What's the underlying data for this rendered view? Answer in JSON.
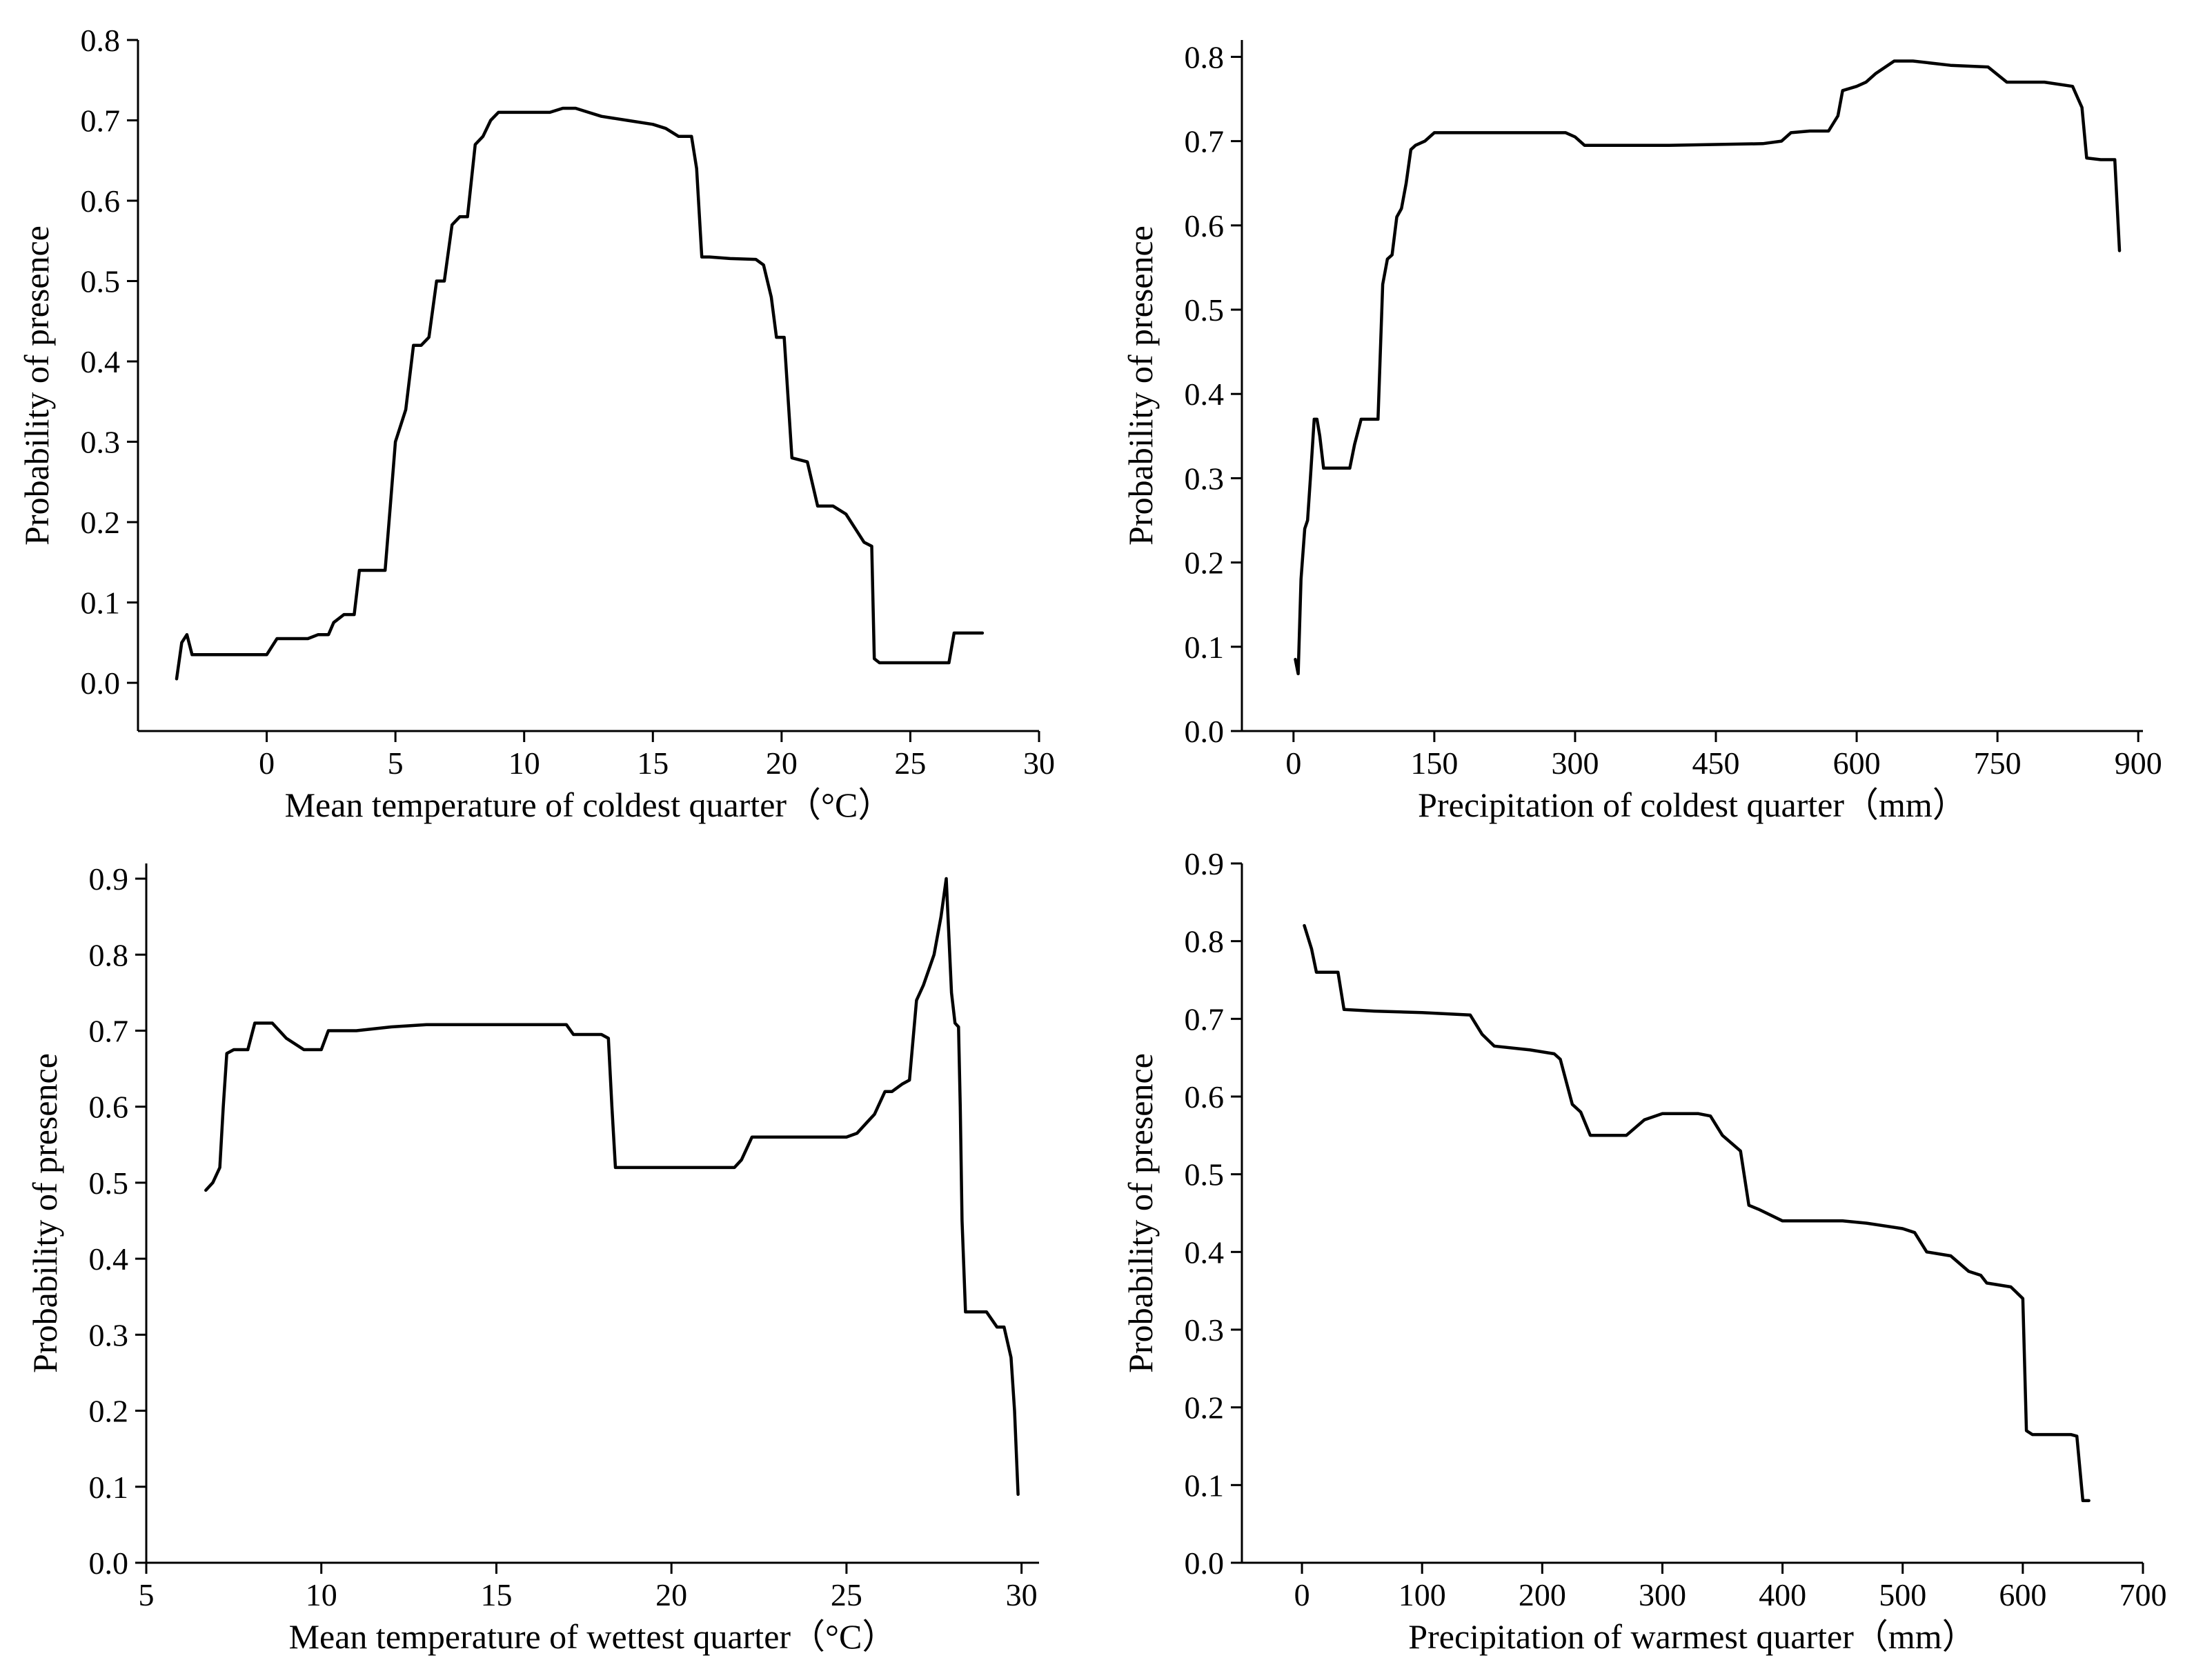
{
  "chart_data": [
    {
      "type": "line",
      "xlabel": "Mean temperature of coldest quarter（°C）",
      "ylabel": "Probability of presence",
      "xlim": [
        -5,
        30
      ],
      "ylim": [
        -0.06,
        0.8
      ],
      "xticks": [
        0,
        5,
        10,
        15,
        20,
        25,
        30
      ],
      "xtick_labels": [
        "0",
        "5",
        "10",
        "15",
        "20",
        "25",
        "30"
      ],
      "yticks": [
        0.0,
        0.1,
        0.2,
        0.3,
        0.4,
        0.5,
        0.6,
        0.7,
        0.8
      ],
      "ytick_labels": [
        "0.0",
        "0.1",
        "0.2",
        "0.3",
        "0.4",
        "0.5",
        "0.6",
        "0.7",
        "0.8"
      ],
      "grid": false,
      "x": [
        -3.5,
        -3.3,
        -3.1,
        -2.9,
        -2.5,
        -1,
        0,
        0.2,
        0.4,
        1,
        1.6,
        2,
        2.4,
        2.6,
        3,
        3.4,
        3.6,
        4,
        4.6,
        4.8,
        5,
        5.4,
        5.7,
        6,
        6.3,
        6.6,
        6.9,
        7.2,
        7.5,
        7.8,
        8.1,
        8.4,
        8.7,
        9,
        10,
        11,
        11.5,
        12,
        12.5,
        13,
        14,
        15,
        15.5,
        16,
        16.5,
        16.7,
        16.9,
        17.2,
        18,
        19,
        19.3,
        19.6,
        19.8,
        20.1,
        20.4,
        21,
        21.4,
        22,
        22.5,
        22.9,
        23.2,
        23.5,
        23.6,
        23.8,
        25,
        26,
        26.5,
        26.7,
        27.5,
        27.8
      ],
      "values": [
        0.005,
        0.05,
        0.06,
        0.035,
        0.035,
        0.035,
        0.035,
        0.045,
        0.055,
        0.055,
        0.055,
        0.06,
        0.06,
        0.075,
        0.085,
        0.085,
        0.14,
        0.14,
        0.14,
        0.22,
        0.3,
        0.34,
        0.42,
        0.42,
        0.43,
        0.5,
        0.5,
        0.57,
        0.58,
        0.58,
        0.67,
        0.68,
        0.7,
        0.71,
        0.71,
        0.71,
        0.715,
        0.715,
        0.71,
        0.705,
        0.7,
        0.695,
        0.69,
        0.68,
        0.68,
        0.64,
        0.53,
        0.53,
        0.528,
        0.527,
        0.52,
        0.48,
        0.43,
        0.43,
        0.28,
        0.275,
        0.22,
        0.22,
        0.21,
        0.19,
        0.175,
        0.17,
        0.03,
        0.025,
        0.025,
        0.025,
        0.025,
        0.062,
        0.062,
        0.062
      ]
    },
    {
      "type": "line",
      "xlabel": "Precipitation of coldest quarter（mm）",
      "ylabel": "Probability of presence",
      "xlim": [
        -55,
        905
      ],
      "ylim": [
        0,
        0.82
      ],
      "xticks": [
        0,
        150,
        300,
        450,
        600,
        750,
        900
      ],
      "xtick_labels": [
        "0",
        "150",
        "300",
        "450",
        "600",
        "750",
        "900"
      ],
      "yticks": [
        0.0,
        0.1,
        0.2,
        0.3,
        0.4,
        0.5,
        0.6,
        0.7,
        0.8
      ],
      "ytick_labels": [
        "0.0",
        "0.1",
        "0.2",
        "0.3",
        "0.4",
        "0.5",
        "0.6",
        "0.7",
        "0.8"
      ],
      "grid": false,
      "x": [
        2,
        5,
        8,
        12,
        15,
        18,
        22,
        25,
        28,
        32,
        36,
        45,
        60,
        65,
        72,
        80,
        90,
        95,
        100,
        105,
        110,
        115,
        120,
        125,
        130,
        140,
        150,
        200,
        250,
        290,
        300,
        310,
        400,
        500,
        520,
        530,
        550,
        570,
        580,
        585,
        600,
        610,
        620,
        640,
        660,
        700,
        740,
        760,
        800,
        830,
        836,
        840,
        845,
        860,
        875,
        880
      ],
      "values": [
        0.085,
        0.068,
        0.18,
        0.24,
        0.25,
        0.3,
        0.37,
        0.37,
        0.35,
        0.312,
        0.312,
        0.312,
        0.312,
        0.34,
        0.37,
        0.37,
        0.37,
        0.53,
        0.56,
        0.565,
        0.61,
        0.62,
        0.65,
        0.69,
        0.695,
        0.7,
        0.71,
        0.71,
        0.71,
        0.71,
        0.705,
        0.695,
        0.695,
        0.697,
        0.7,
        0.71,
        0.712,
        0.712,
        0.73,
        0.76,
        0.765,
        0.77,
        0.78,
        0.795,
        0.795,
        0.79,
        0.788,
        0.77,
        0.77,
        0.765,
        0.75,
        0.74,
        0.68,
        0.678,
        0.678,
        0.57
      ]
    },
    {
      "type": "line",
      "xlabel": "Mean temperature of wettest quarter（°C）",
      "ylabel": "Probability of presence",
      "xlim": [
        5,
        30.5
      ],
      "ylim": [
        0,
        0.92
      ],
      "xticks": [
        5,
        10,
        15,
        20,
        25,
        30
      ],
      "xtick_labels": [
        "5",
        "10",
        "15",
        "20",
        "25",
        "30"
      ],
      "yticks": [
        0.0,
        0.1,
        0.2,
        0.3,
        0.4,
        0.5,
        0.6,
        0.7,
        0.8,
        0.9
      ],
      "ytick_labels": [
        "0.0",
        "0.1",
        "0.2",
        "0.3",
        "0.4",
        "0.5",
        "0.6",
        "0.7",
        "0.8",
        "0.9"
      ],
      "grid": false,
      "x": [
        6.7,
        6.9,
        7.1,
        7.2,
        7.3,
        7.5,
        7.9,
        8.1,
        8.6,
        9,
        9.5,
        10,
        10.2,
        11,
        12,
        13,
        15,
        17,
        17.2,
        18,
        18.2,
        18.3,
        18.4,
        20,
        21,
        21.8,
        22,
        22.3,
        23,
        24,
        25,
        25.3,
        25.6,
        25.8,
        26.1,
        26.3,
        26.6,
        26.8,
        27,
        27.2,
        27.5,
        27.7,
        27.85,
        28,
        28.1,
        28.2,
        28.25,
        28.3,
        28.4,
        28.6,
        29,
        29.3,
        29.5,
        29.7,
        29.8,
        29.9
      ],
      "values": [
        0.49,
        0.5,
        0.52,
        0.6,
        0.67,
        0.675,
        0.675,
        0.71,
        0.71,
        0.69,
        0.675,
        0.675,
        0.7,
        0.7,
        0.705,
        0.708,
        0.708,
        0.708,
        0.695,
        0.695,
        0.69,
        0.6,
        0.52,
        0.52,
        0.52,
        0.52,
        0.53,
        0.56,
        0.56,
        0.56,
        0.56,
        0.565,
        0.58,
        0.59,
        0.62,
        0.62,
        0.63,
        0.635,
        0.74,
        0.76,
        0.8,
        0.85,
        0.9,
        0.75,
        0.71,
        0.705,
        0.6,
        0.45,
        0.33,
        0.33,
        0.33,
        0.31,
        0.31,
        0.27,
        0.2,
        0.09
      ]
    },
    {
      "type": "line",
      "xlabel": "Precipitation of warmest quarter（mm）",
      "ylabel": "Probability of presence",
      "xlim": [
        -50,
        700
      ],
      "ylim": [
        0,
        0.9
      ],
      "xticks": [
        0,
        100,
        200,
        300,
        400,
        500,
        600,
        700
      ],
      "xtick_labels": [
        "0",
        "100",
        "200",
        "300",
        "400",
        "500",
        "600",
        "700"
      ],
      "yticks": [
        0.0,
        0.1,
        0.2,
        0.3,
        0.4,
        0.5,
        0.6,
        0.7,
        0.8,
        0.9
      ],
      "ytick_labels": [
        "0.0",
        "0.1",
        "0.2",
        "0.3",
        "0.4",
        "0.5",
        "0.6",
        "0.7",
        "0.8",
        "0.9"
      ],
      "grid": false,
      "x": [
        2,
        8,
        12,
        30,
        35,
        60,
        100,
        140,
        150,
        160,
        190,
        210,
        215,
        225,
        232,
        240,
        270,
        285,
        300,
        330,
        340,
        350,
        365,
        372,
        380,
        400,
        450,
        470,
        500,
        510,
        520,
        540,
        555,
        565,
        570,
        590,
        600,
        603,
        608,
        640,
        645,
        650,
        655
      ],
      "values": [
        0.82,
        0.79,
        0.76,
        0.76,
        0.712,
        0.71,
        0.708,
        0.705,
        0.68,
        0.665,
        0.66,
        0.655,
        0.648,
        0.59,
        0.58,
        0.55,
        0.55,
        0.57,
        0.578,
        0.578,
        0.575,
        0.55,
        0.53,
        0.46,
        0.455,
        0.44,
        0.44,
        0.437,
        0.43,
        0.425,
        0.4,
        0.395,
        0.375,
        0.37,
        0.36,
        0.355,
        0.34,
        0.17,
        0.165,
        0.165,
        0.163,
        0.08,
        0.08
      ]
    }
  ]
}
